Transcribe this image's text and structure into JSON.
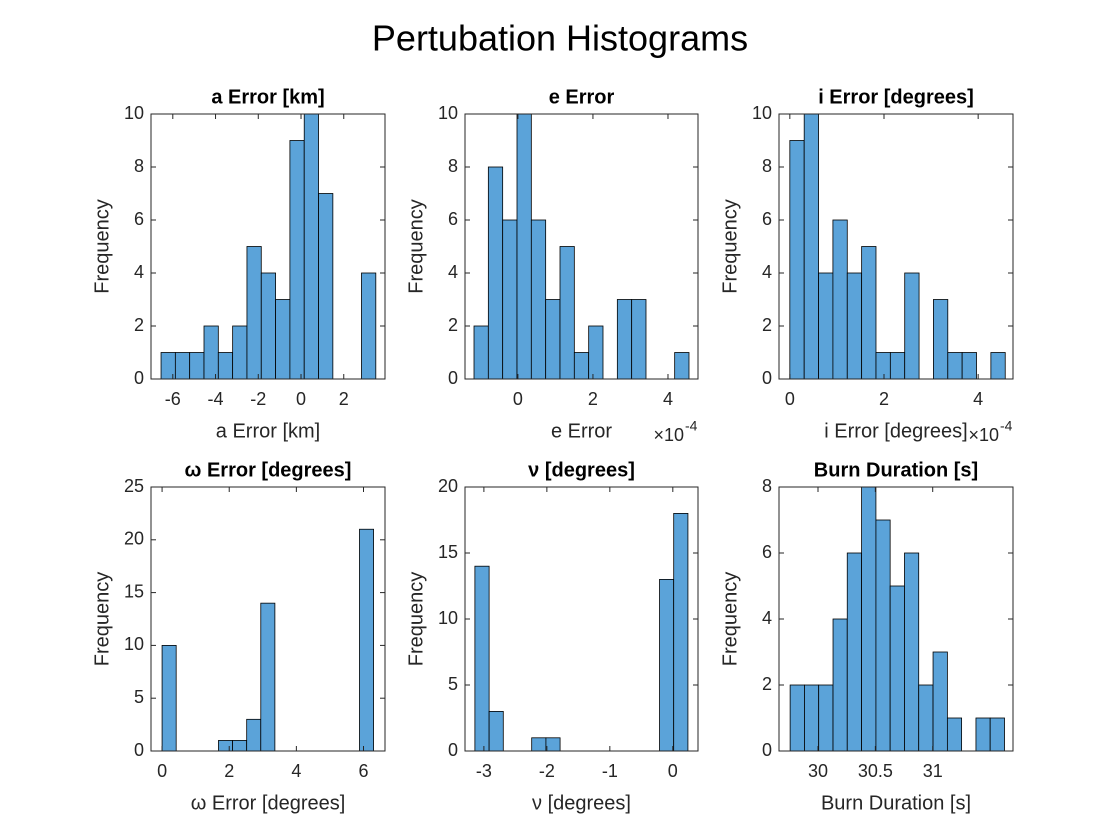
{
  "title": "Pertubation Histograms",
  "chart_data": [
    {
      "type": "histogram",
      "title": "a Error [km]",
      "xlabel": "a Error [km]",
      "ylabel": "Frequency",
      "bins": [
        -6.55,
        -5.88,
        -5.21,
        -4.54,
        -3.87,
        -3.2,
        -2.53,
        -1.86,
        -1.19,
        -0.52,
        0.15,
        0.82,
        1.49,
        2.16,
        2.83,
        3.5
      ],
      "values": [
        1,
        1,
        1,
        2,
        1,
        2,
        5,
        4,
        3,
        9,
        10,
        7,
        0,
        0,
        4
      ],
      "xlim": [
        -7.02,
        3.93
      ],
      "xticks": [
        -6,
        -4,
        -2,
        0,
        2
      ],
      "ylim": [
        0,
        10
      ],
      "yticks": [
        0,
        2,
        4,
        6,
        8,
        10
      ],
      "color": "#5ba3d9",
      "edgecolor": "#000000"
    },
    {
      "type": "histogram",
      "title": "e Error",
      "xlabel": "e Error",
      "ylabel": "Frequency",
      "x_multiplier_base": "×10",
      "x_multiplier_power": "-4",
      "bins": [
        -1.17,
        -0.788,
        -0.406,
        -0.024,
        0.358,
        0.74,
        1.122,
        1.504,
        1.886,
        2.268,
        2.65,
        3.032,
        3.414,
        3.796,
        4.178,
        4.56
      ],
      "values": [
        2,
        8,
        6,
        10,
        6,
        3,
        5,
        1,
        2,
        0,
        3,
        3,
        0,
        0,
        1
      ],
      "xlim": [
        -1.41,
        4.8
      ],
      "xticks": [
        0,
        2,
        4
      ],
      "ylim": [
        0,
        10
      ],
      "yticks": [
        0,
        2,
        4,
        6,
        8,
        10
      ],
      "color": "#5ba3d9",
      "edgecolor": "#000000"
    },
    {
      "type": "histogram",
      "title": "i Error [degrees]",
      "xlabel": "i Error [degrees]",
      "ylabel": "Frequency",
      "x_multiplier_base": "×10",
      "x_multiplier_power": "-4",
      "bins": [
        0,
        0.305,
        0.61,
        0.915,
        1.22,
        1.525,
        1.83,
        2.135,
        2.44,
        2.745,
        3.05,
        3.355,
        3.66,
        3.965,
        4.27,
        4.575
      ],
      "values": [
        9,
        10,
        4,
        6,
        4,
        5,
        1,
        1,
        4,
        0,
        3,
        1,
        1,
        0,
        1
      ],
      "xlim": [
        -0.23,
        4.74
      ],
      "xticks": [
        0,
        2,
        4
      ],
      "ylim": [
        0,
        10
      ],
      "yticks": [
        0,
        2,
        4,
        6,
        8,
        10
      ],
      "color": "#5ba3d9",
      "edgecolor": "#000000"
    },
    {
      "type": "histogram",
      "title": "ω Error [degrees]",
      "xlabel": "ω Error [degrees]",
      "ylabel": "Frequency",
      "bins": [
        0,
        0.42,
        0.84,
        1.26,
        1.68,
        2.1,
        2.52,
        2.94,
        3.36,
        3.78,
        4.2,
        4.62,
        5.04,
        5.46,
        5.88,
        6.3
      ],
      "values": [
        10,
        0,
        0,
        0,
        1,
        1,
        3,
        14,
        0,
        0,
        0,
        0,
        0,
        0,
        21
      ],
      "xlim": [
        -0.33,
        6.64
      ],
      "xticks": [
        0,
        2,
        4,
        6
      ],
      "ylim": [
        0,
        25
      ],
      "yticks": [
        0,
        5,
        10,
        15,
        20,
        25
      ],
      "color": "#5ba3d9",
      "edgecolor": "#000000"
    },
    {
      "type": "histogram",
      "title": "ν [degrees]",
      "xlabel": "ν [degrees]",
      "ylabel": "Frequency",
      "bins": [
        -3.143,
        -2.917,
        -2.692,
        -2.466,
        -2.241,
        -2.015,
        -1.79,
        -1.564,
        -1.339,
        -1.113,
        -0.888,
        -0.662,
        -0.437,
        -0.211,
        0.014,
        0.24
      ],
      "values": [
        14,
        3,
        0,
        0,
        1,
        1,
        0,
        0,
        0,
        0,
        0,
        0,
        0,
        13,
        18
      ],
      "xlim": [
        -3.3,
        0.4
      ],
      "xticks": [
        -3,
        -2,
        -1,
        0
      ],
      "ylim": [
        0,
        20
      ],
      "yticks": [
        0,
        5,
        10,
        15,
        20
      ],
      "color": "#5ba3d9",
      "edgecolor": "#000000"
    },
    {
      "type": "histogram",
      "title": "Burn Duration [s]",
      "xlabel": "Burn Duration [s]",
      "ylabel": "Frequency",
      "bins": [
        29.757,
        29.882,
        30.006,
        30.131,
        30.255,
        30.38,
        30.505,
        30.629,
        30.754,
        30.878,
        31.003,
        31.128,
        31.252,
        31.377,
        31.501,
        31.626
      ],
      "values": [
        2,
        2,
        2,
        4,
        6,
        8,
        7,
        5,
        6,
        2,
        3,
        1,
        0,
        1,
        1
      ],
      "xlim": [
        29.66,
        31.7
      ],
      "xticks": [
        30,
        30.5,
        31
      ],
      "ylim": [
        0,
        8
      ],
      "yticks": [
        0,
        2,
        4,
        6,
        8
      ],
      "color": "#5ba3d9",
      "edgecolor": "#000000"
    }
  ]
}
